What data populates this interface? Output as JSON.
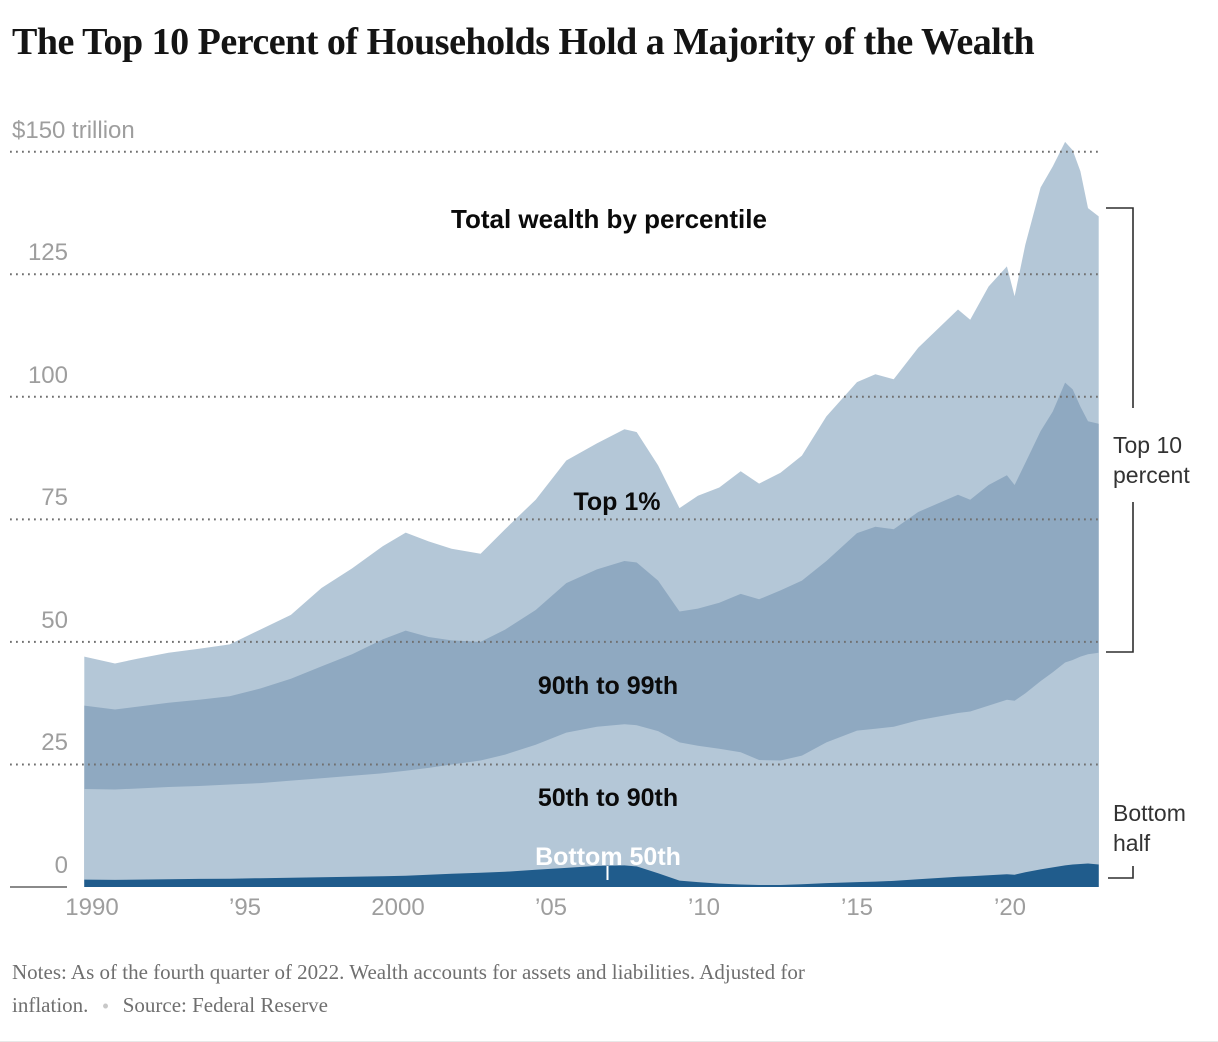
{
  "title": "The Top 10 Percent of Households Hold a Majority of the Wealth",
  "annotations": {
    "chart_heading": "Total wealth by percentile",
    "top1_label": "Top 1%",
    "p9099_label": "90th to 99th",
    "p5090_label": "50th to 90th",
    "bottom50_label": "Bottom 50th",
    "top10_bracket_label": "Top 10\npercent",
    "bottom_half_bracket_label": "Bottom\nhalf"
  },
  "notes": {
    "line1": "Notes: As of the fourth quarter of 2022. Wealth accounts for assets and liabilities. Adjusted for",
    "line2_start": "inflation.",
    "bullet": "•",
    "line2_source": "Source: Federal Reserve"
  },
  "chart_data": {
    "type": "area",
    "stacked": true,
    "title": "Total wealth by percentile",
    "unit": "trillions of dollars",
    "x_range": [
      1989.75,
      2022.9
    ],
    "y_range": [
      0,
      155
    ],
    "grid": "dotted-horizontal",
    "y_ticks": [
      {
        "label": "$150 trillion",
        "value": 150,
        "style": "full"
      },
      {
        "label": "125",
        "value": 125,
        "style": "num"
      },
      {
        "label": "100",
        "value": 100,
        "style": "num"
      },
      {
        "label": "75",
        "value": 75,
        "style": "num"
      },
      {
        "label": "50",
        "value": 50,
        "style": "num"
      },
      {
        "label": "25",
        "value": 25,
        "style": "num"
      },
      {
        "label": "0",
        "value": 0,
        "style": "num"
      }
    ],
    "x_ticks": [
      {
        "label": "1990",
        "year": 1990
      },
      {
        "label": "’95",
        "year": 1995
      },
      {
        "label": "2000",
        "year": 2000
      },
      {
        "label": "’05",
        "year": 2005
      },
      {
        "label": "’10",
        "year": 2010
      },
      {
        "label": "’15",
        "year": 2015
      },
      {
        "label": "’20",
        "year": 2020
      }
    ],
    "colors": {
      "band_light": "#b4c7d7",
      "band_mid": "#8fa9c1",
      "band_navy": "#205c8c",
      "gridline": "#707070",
      "zero_axis": "#8a8a8a",
      "bracket": "#2f2f2f",
      "axis_text": "#9e9e9e"
    },
    "band_order_top_to_bottom": [
      "Top 1%",
      "90th to 99th",
      "50th to 90th",
      "Bottom 50th"
    ],
    "series_cumulative_note": "values are cumulative stack tops in trillions of 2022 dollars, quarterly-smoothed estimates read from the chart",
    "years": [
      1989.75,
      1990.75,
      1991.5,
      1992.5,
      1993.5,
      1994.5,
      1995.5,
      1996.5,
      1997.5,
      1998.5,
      1999.5,
      2000.25,
      2001.0,
      2001.75,
      2002.7,
      2003.5,
      2004.5,
      2005.5,
      2006.5,
      2007.4,
      2007.8,
      2008.5,
      2009.2,
      2009.8,
      2010.5,
      2011.2,
      2011.8,
      2012.5,
      2013.2,
      2014.0,
      2015.0,
      2015.6,
      2016.2,
      2017.0,
      2018.3,
      2018.7,
      2019.3,
      2019.9,
      2020.15,
      2020.5,
      2021.0,
      2021.4,
      2021.8,
      2022.05,
      2022.3,
      2022.55,
      2022.9
    ],
    "total_top": [
      47,
      45.6,
      46.6,
      47.8,
      48.6,
      49.5,
      52.5,
      55.5,
      61,
      65,
      69.5,
      72.3,
      70.5,
      69,
      68,
      73,
      79,
      87,
      90.5,
      93.4,
      92.8,
      86,
      77.3,
      79.8,
      81.5,
      84.8,
      82.3,
      84.5,
      88,
      96,
      103,
      104.6,
      103.6,
      110,
      117.8,
      115.7,
      122.5,
      126.6,
      120.5,
      131,
      142.7,
      147,
      152,
      150.3,
      146,
      138.5,
      136.8
    ],
    "p9099_top": [
      37,
      36.2,
      36.8,
      37.6,
      38.2,
      38.9,
      40.5,
      42.5,
      45,
      47.5,
      50.5,
      52.3,
      51,
      50.3,
      50,
      52.5,
      56.5,
      62,
      64.8,
      66.5,
      66.2,
      62.5,
      56.2,
      56.8,
      58,
      59.8,
      58.7,
      60.5,
      62.5,
      66.5,
      72.2,
      73.5,
      73,
      76.5,
      80,
      79,
      82,
      84,
      82,
      86.5,
      93,
      97,
      102.9,
      101.5,
      98,
      95,
      94.5
    ],
    "p5090_top": [
      20,
      19.9,
      20.1,
      20.4,
      20.6,
      20.9,
      21.2,
      21.7,
      22.2,
      22.7,
      23.2,
      23.7,
      24.3,
      25,
      25.8,
      27,
      29,
      31.5,
      32.7,
      33.2,
      33,
      31.8,
      29.5,
      28.8,
      28.2,
      27.5,
      25.9,
      25.8,
      26.8,
      29.5,
      31.9,
      32.3,
      32.7,
      34,
      35.5,
      35.8,
      37,
      38.2,
      38,
      39.5,
      42,
      43.8,
      45.8,
      46.3,
      47,
      47.5,
      47.8
    ],
    "bottom50_top": [
      1.5,
      1.45,
      1.5,
      1.6,
      1.65,
      1.7,
      1.8,
      1.9,
      2.0,
      2.1,
      2.2,
      2.3,
      2.5,
      2.7,
      2.9,
      3.1,
      3.5,
      3.9,
      4.3,
      4.4,
      4.2,
      2.8,
      1.3,
      1.0,
      0.7,
      0.5,
      0.4,
      0.4,
      0.55,
      0.8,
      1.0,
      1.1,
      1.25,
      1.6,
      2.1,
      2.2,
      2.4,
      2.6,
      2.5,
      3.0,
      3.6,
      4.0,
      4.4,
      4.6,
      4.7,
      4.8,
      4.6
    ]
  }
}
